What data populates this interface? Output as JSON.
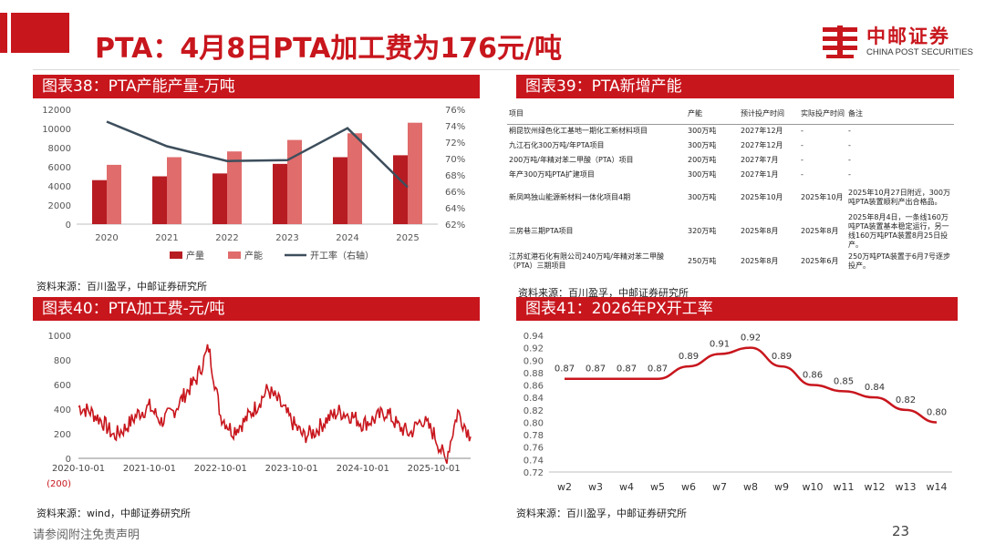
{
  "header": {
    "title": "PTA：4月8日PTA加工费为176元/吨",
    "logo_cn": "中邮证券",
    "logo_en": "CHINA POST SECURITIES"
  },
  "footer": {
    "note": "请参阅附注免责声明",
    "page": "23"
  },
  "colors": {
    "brand_red": "#C8161D",
    "bar_capacity": "#E06C6C",
    "bar_output": "#B71C22",
    "line_util": "#3D4E5C"
  },
  "charts": {
    "c38": {
      "heading": "图表38：PTA产能产量-万吨",
      "source": "资料来源：百川盈孚，中邮证券研究所"
    },
    "c39": {
      "heading": "图表39：PTA新增产能",
      "source": "资料来源：百川盈孚，中邮证券研究所"
    },
    "c40": {
      "heading": "图表40：PTA加工费-元/吨",
      "source": "资料来源：wind，中邮证券研究所"
    },
    "c41": {
      "heading": "图表41：2026年PX开工率",
      "source": "资料来源：百川盈孚，中邮证券研究所"
    }
  },
  "table39": {
    "columns": [
      "项目",
      "产能",
      "预计投产时间",
      "实际投产时间",
      "备注"
    ],
    "rows": [
      [
        "桐昆钦州绿色化工基地一期化工新材料项目",
        "300万吨",
        "2027年12月",
        "-",
        "-"
      ],
      [
        "九江石化300万吨/年PTA项目",
        "300万吨",
        "2027年12月",
        "-",
        "-"
      ],
      [
        "200万吨/年精对苯二甲酸（PTA）项目",
        "200万吨",
        "2027年7月",
        "-",
        "-"
      ],
      [
        "年产300万吨PTA扩建项目",
        "300万吨",
        "2027年1月",
        "-",
        "-"
      ],
      [
        "新凤鸣独山能源新材料一体化项目4期",
        "300万吨",
        "2025年10月",
        "2025年10月",
        "2025年10月27日附近，300万吨PTA装置顺利产出合格品。"
      ],
      [
        "三房巷三期PTA项目",
        "320万吨",
        "2025年8月",
        "2025年8月",
        "2025年8月4日，一条线160万吨PTA装置基本稳定运行，另一线160万吨PTA装置8月25日投产。"
      ],
      [
        "江苏虹港石化有限公司240万吨/年精对苯二甲酸（PTA）三期项目",
        "250万吨",
        "2025年8月",
        "2025年6月",
        "250万吨PTA装置于6月7号逐步投产。"
      ]
    ]
  },
  "chart_data": [
    {
      "id": "c38",
      "type": "bar",
      "categories": [
        "2020",
        "2021",
        "2022",
        "2023",
        "2024",
        "2025"
      ],
      "series": [
        {
          "name": "产量",
          "type": "bar",
          "values": [
            4600,
            5000,
            5300,
            6300,
            7000,
            7200
          ]
        },
        {
          "name": "产能",
          "type": "bar",
          "values": [
            6200,
            7000,
            7600,
            8800,
            9500,
            10600
          ]
        },
        {
          "name": "开工率（右轴）",
          "type": "line",
          "axis": "right",
          "values": [
            0.745,
            0.715,
            0.697,
            0.698,
            0.737,
            0.665
          ]
        }
      ],
      "ylim": [
        0,
        12000
      ],
      "yticks": [
        "0",
        "2000",
        "4000",
        "6000",
        "8000",
        "10000",
        "12000"
      ],
      "y2lim": [
        0.62,
        0.76
      ],
      "y2ticks": [
        "62%",
        "64%",
        "66%",
        "68%",
        "70%",
        "72%",
        "74%",
        "76%"
      ],
      "legend": "bottom"
    },
    {
      "id": "c40",
      "type": "line",
      "title": "",
      "ylim": [
        -200,
        1000
      ],
      "yticks": [
        "(200)",
        "0",
        "200",
        "400",
        "600",
        "800",
        "1000"
      ],
      "xticks": [
        "2020-10-01",
        "2021-10-01",
        "2022-10-01",
        "2023-10-01",
        "2024-10-01",
        "2025-10-01"
      ],
      "series": [
        {
          "name": "",
          "x": [
            "2020-10-01",
            "2020-12-01",
            "2021-02-01",
            "2021-04-01",
            "2021-06-01",
            "2021-08-01",
            "2021-10-01",
            "2021-12-01",
            "2022-02-01",
            "2022-04-01",
            "2022-06-01",
            "2022-08-01",
            "2022-10-01",
            "2022-12-01",
            "2023-02-01",
            "2023-04-01",
            "2023-06-01",
            "2023-08-01",
            "2023-10-01",
            "2023-12-01",
            "2024-02-01",
            "2024-04-01",
            "2024-06-01",
            "2024-08-01",
            "2024-10-01",
            "2024-12-01",
            "2025-02-01",
            "2025-04-01",
            "2025-06-01",
            "2025-08-01",
            "2025-10-01",
            "2025-12-01",
            "2026-02-01",
            "2026-04-08"
          ],
          "values": [
            420,
            380,
            300,
            180,
            250,
            360,
            420,
            300,
            380,
            520,
            650,
            900,
            350,
            220,
            300,
            420,
            560,
            450,
            300,
            180,
            220,
            320,
            380,
            350,
            280,
            320,
            380,
            260,
            200,
            320,
            200,
            -20,
            380,
            176
          ]
        }
      ]
    },
    {
      "id": "c41",
      "type": "line",
      "categories": [
        "w2",
        "w3",
        "w4",
        "w5",
        "w6",
        "w7",
        "w8",
        "w9",
        "w10",
        "w11",
        "w12",
        "w13",
        "w14"
      ],
      "series": [
        {
          "name": "",
          "values": [
            0.87,
            0.87,
            0.87,
            0.87,
            0.89,
            0.91,
            0.92,
            0.89,
            0.86,
            0.85,
            0.84,
            0.82,
            0.8
          ]
        }
      ],
      "labels": [
        "0.87",
        "0.87",
        "0.87",
        "0.87",
        "0.89",
        "0.91",
        "0.92",
        "0.89",
        "0.86",
        "0.85",
        "0.84",
        "0.82",
        "0.80"
      ],
      "ylim": [
        0.72,
        0.94
      ],
      "yticks": [
        "0.72",
        "0.74",
        "0.76",
        "0.78",
        "0.80",
        "0.82",
        "0.84",
        "0.86",
        "0.88",
        "0.90",
        "0.92",
        "0.94"
      ]
    }
  ]
}
